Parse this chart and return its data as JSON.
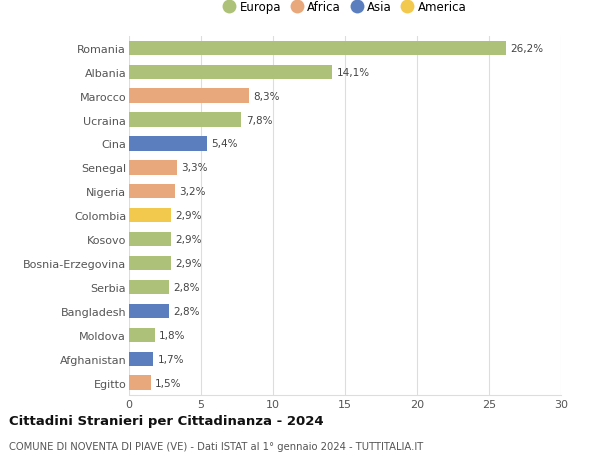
{
  "categories": [
    "Romania",
    "Albania",
    "Marocco",
    "Ucraina",
    "Cina",
    "Senegal",
    "Nigeria",
    "Colombia",
    "Kosovo",
    "Bosnia-Erzegovina",
    "Serbia",
    "Bangladesh",
    "Moldova",
    "Afghanistan",
    "Egitto"
  ],
  "values": [
    26.2,
    14.1,
    8.3,
    7.8,
    5.4,
    3.3,
    3.2,
    2.9,
    2.9,
    2.9,
    2.8,
    2.8,
    1.8,
    1.7,
    1.5
  ],
  "labels": [
    "26,2%",
    "14,1%",
    "8,3%",
    "7,8%",
    "5,4%",
    "3,3%",
    "3,2%",
    "2,9%",
    "2,9%",
    "2,9%",
    "2,8%",
    "2,8%",
    "1,8%",
    "1,7%",
    "1,5%"
  ],
  "continent": [
    "Europa",
    "Europa",
    "Africa",
    "Europa",
    "Asia",
    "Africa",
    "Africa",
    "America",
    "Europa",
    "Europa",
    "Europa",
    "Asia",
    "Europa",
    "Asia",
    "Africa"
  ],
  "colors": {
    "Europa": "#adc178",
    "Africa": "#e8a87c",
    "Asia": "#5b7fbe",
    "America": "#f2c94c"
  },
  "xlim": [
    0,
    30
  ],
  "xticks": [
    0,
    5,
    10,
    15,
    20,
    25,
    30
  ],
  "title": "Cittadini Stranieri per Cittadinanza - 2024",
  "subtitle": "COMUNE DI NOVENTA DI PIAVE (VE) - Dati ISTAT al 1° gennaio 2024 - TUTTITALIA.IT",
  "background_color": "#ffffff",
  "bar_height": 0.6,
  "grid_color": "#dddddd",
  "legend_order": [
    "Europa",
    "Africa",
    "Asia",
    "America"
  ]
}
